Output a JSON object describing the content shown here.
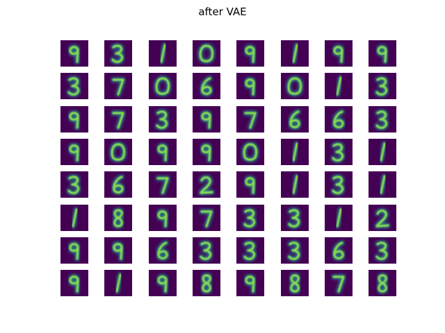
{
  "title": "after VAE",
  "colormap": {
    "background": "#440154",
    "glow": "#21918c",
    "core": "#5ec962",
    "peak": "#fde725"
  },
  "rows": [
    [
      "9",
      "3",
      "1",
      "0",
      "9",
      "1",
      "9",
      "9"
    ],
    [
      "3",
      "7",
      "0",
      "6",
      "9",
      "0",
      "1",
      "3"
    ],
    [
      "9",
      "7",
      "3",
      "9",
      "7",
      "6",
      "6",
      "3"
    ],
    [
      "9",
      "0",
      "9",
      "9",
      "0",
      "1",
      "3",
      "1"
    ],
    [
      "3",
      "6",
      "7",
      "2",
      "9",
      "1",
      "3",
      "1"
    ],
    [
      "1",
      "8",
      "9",
      "7",
      "3",
      "3",
      "1",
      "2"
    ],
    [
      "9",
      "9",
      "6",
      "3",
      "3",
      "3",
      "6",
      "3"
    ],
    [
      "9",
      "1",
      "9",
      "8",
      "9",
      "8",
      "7",
      "8"
    ]
  ]
}
